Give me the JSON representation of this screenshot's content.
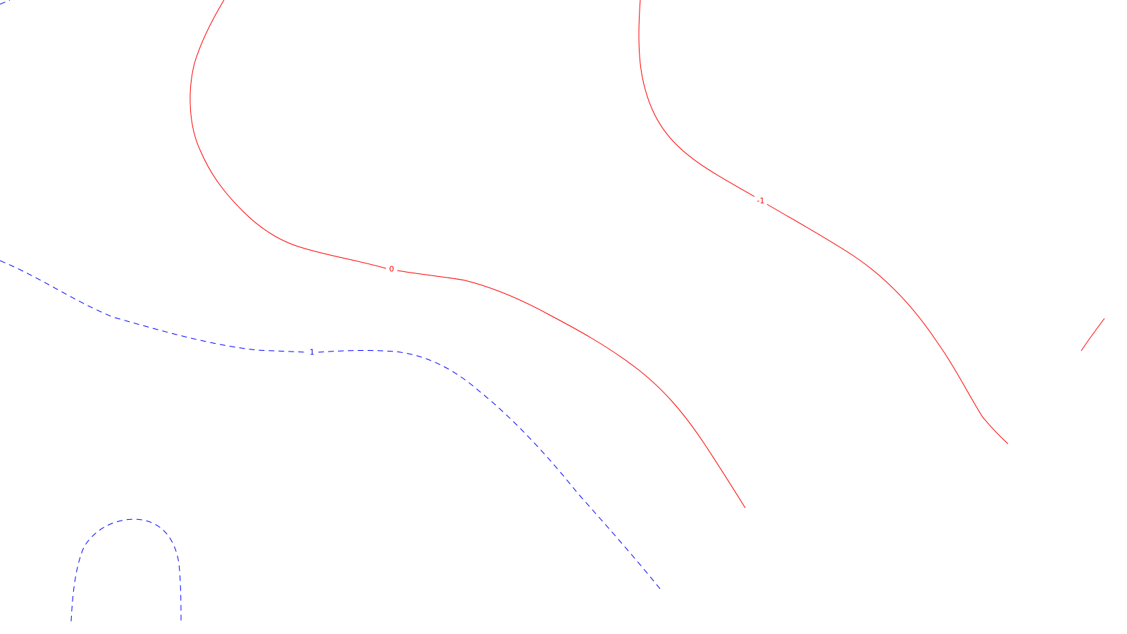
{
  "colors": {
    "background": "#ffffff",
    "positive_contour": "#0000ff",
    "nonpositive_contour": "#ff0000"
  },
  "contours": [
    {
      "name": "contour-1-main",
      "level": "1",
      "color": "#0000ff",
      "style": "dashed",
      "label": "1"
    },
    {
      "name": "contour-1-lower-left",
      "level": "1",
      "color": "#0000ff",
      "style": "dashed",
      "label": ""
    },
    {
      "name": "contour-1-top-left-corner",
      "level": "1",
      "color": "#0000ff",
      "style": "dashed",
      "label": ""
    },
    {
      "name": "contour-0",
      "level": "0",
      "color": "#ff0000",
      "style": "solid",
      "label": "0"
    },
    {
      "name": "contour-minus-1",
      "level": "-1",
      "color": "#ff0000",
      "style": "solid",
      "label": "-1"
    },
    {
      "name": "contour-right-edge",
      "level": "",
      "color": "#ff0000",
      "style": "solid",
      "label": ""
    }
  ]
}
